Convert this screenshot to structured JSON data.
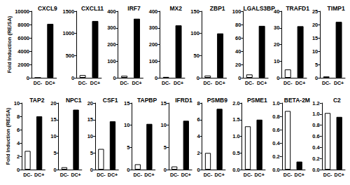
{
  "chart_data": [
    {
      "type": "bar",
      "title": "CXCL9",
      "ylabel": "Fold Induction (RE/SA)",
      "categories": [
        "DC-",
        "DC+"
      ],
      "values": [
        10,
        8100
      ],
      "colors": [
        "#ffffff",
        "#000000"
      ],
      "ylim": [
        0,
        10000
      ],
      "yticks": [
        0,
        2000,
        4000,
        6000,
        8000,
        10000
      ],
      "grid": false
    },
    {
      "type": "bar",
      "title": "CXCL11",
      "categories": [
        "DC-",
        "DC+"
      ],
      "values": [
        60,
        1280
      ],
      "colors": [
        "#ffffff",
        "#000000"
      ],
      "ylim": [
        0,
        1500
      ],
      "yticks": [
        0,
        500,
        1000,
        1500
      ],
      "grid": false
    },
    {
      "type": "bar",
      "title": "IRF7",
      "categories": [
        "DC-",
        "DC+"
      ],
      "values": [
        12,
        355
      ],
      "colors": [
        "#ffffff",
        "#000000"
      ],
      "ylim": [
        0,
        400
      ],
      "yticks": [
        0,
        100,
        200,
        300,
        400
      ],
      "grid": false
    },
    {
      "type": "bar",
      "title": "MX2",
      "categories": [
        "DC-",
        "DC+"
      ],
      "values": [
        5,
        315
      ],
      "colors": [
        "#ffffff",
        "#000000"
      ],
      "ylim": [
        0,
        400
      ],
      "yticks": [
        0,
        100,
        200,
        300,
        400
      ],
      "grid": false
    },
    {
      "type": "bar",
      "title": "ZBP1",
      "categories": [
        "DC-",
        "DC+"
      ],
      "values": [
        5,
        100
      ],
      "colors": [
        "#ffffff",
        "#000000"
      ],
      "ylim": [
        0,
        150
      ],
      "yticks": [
        0,
        50,
        100,
        150
      ],
      "grid": false
    },
    {
      "type": "bar",
      "title": "LGALS3BP",
      "categories": [
        "DC-",
        "DC+"
      ],
      "values": [
        5,
        78
      ],
      "colors": [
        "#ffffff",
        "#000000"
      ],
      "ylim": [
        0,
        100
      ],
      "yticks": [
        0,
        20,
        40,
        60,
        80,
        100
      ],
      "grid": false
    },
    {
      "type": "bar",
      "title": "TRAFD1",
      "categories": [
        "DC-",
        "DC+"
      ],
      "values": [
        5,
        31
      ],
      "colors": [
        "#ffffff",
        "#000000"
      ],
      "ylim": [
        0,
        40
      ],
      "yticks": [
        0,
        10,
        20,
        30,
        40
      ],
      "grid": false
    },
    {
      "type": "bar",
      "title": "TIMP1",
      "categories": [
        "DC-",
        "DC+"
      ],
      "values": [
        0.5,
        21
      ],
      "colors": [
        "#ffffff",
        "#000000"
      ],
      "ylim": [
        0,
        25
      ],
      "yticks": [
        0,
        5,
        10,
        15,
        20,
        25
      ],
      "grid": false
    },
    {
      "type": "bar",
      "title": "TAP2",
      "ylabel": "Fold Induction (RE/SA)",
      "categories": [
        "DC-",
        "DC+"
      ],
      "values": [
        2.8,
        8
      ],
      "colors": [
        "#ffffff",
        "#000000"
      ],
      "ylim": [
        0,
        10
      ],
      "yticks": [
        0,
        2,
        4,
        6,
        8,
        10
      ],
      "grid": false
    },
    {
      "type": "bar",
      "title": "NPC1",
      "categories": [
        "DC-",
        "DC+"
      ],
      "values": [
        0.7,
        18
      ],
      "colors": [
        "#ffffff",
        "#000000"
      ],
      "ylim": [
        0,
        20
      ],
      "yticks": [
        0,
        5,
        10,
        15,
        20
      ],
      "grid": false
    },
    {
      "type": "bar",
      "title": "CSF1",
      "categories": [
        "DC-",
        "DC+"
      ],
      "values": [
        6.2,
        14.5
      ],
      "colors": [
        "#ffffff",
        "#000000"
      ],
      "ylim": [
        0,
        20
      ],
      "yticks": [
        0,
        5,
        10,
        15,
        20
      ],
      "grid": false
    },
    {
      "type": "bar",
      "title": "TAPBP",
      "categories": [
        "DC-",
        "DC+"
      ],
      "values": [
        1.2,
        10.3
      ],
      "colors": [
        "#ffffff",
        "#000000"
      ],
      "ylim": [
        0,
        15
      ],
      "yticks": [
        0,
        5,
        10,
        15
      ],
      "grid": false
    },
    {
      "type": "bar",
      "title": "IFRD1",
      "categories": [
        "DC-",
        "DC+"
      ],
      "values": [
        0.7,
        11
      ],
      "colors": [
        "#ffffff",
        "#000000"
      ],
      "ylim": [
        0,
        15
      ],
      "yticks": [
        0,
        5,
        10,
        15
      ],
      "grid": false
    },
    {
      "type": "bar",
      "title": "PSMB9",
      "categories": [
        "DC-",
        "DC+"
      ],
      "values": [
        2,
        7.3
      ],
      "colors": [
        "#ffffff",
        "#000000"
      ],
      "ylim": [
        0,
        8
      ],
      "yticks": [
        0,
        2,
        4,
        6,
        8
      ],
      "grid": false
    },
    {
      "type": "bar",
      "title": "PSME1",
      "categories": [
        "DC-",
        "DC+"
      ],
      "values": [
        1.3,
        1.5
      ],
      "colors": [
        "#ffffff",
        "#000000"
      ],
      "ylim": [
        0,
        2
      ],
      "yticks": [
        {
          "value": 0,
          "label": "0.0"
        },
        0.5,
        {
          "value": 1,
          "label": "1.0"
        },
        1.5,
        {
          "value": 2,
          "label": "2.0"
        }
      ],
      "grid": false
    },
    {
      "type": "bar",
      "title": "BETA-2M",
      "categories": [
        "DC-",
        "DC+"
      ],
      "values": [
        0.88,
        0.12
      ],
      "colors": [
        "#ffffff",
        "#000000"
      ],
      "ylim": [
        0,
        1
      ],
      "yticks": [
        {
          "value": 0,
          "label": "0.0"
        },
        0.2,
        0.4,
        0.6,
        0.8,
        {
          "value": 1,
          "label": "1.0"
        }
      ],
      "grid": false
    },
    {
      "type": "bar",
      "title": "C2",
      "categories": [
        "DC-",
        "DC+"
      ],
      "values": [
        1.02,
        0.95
      ],
      "colors": [
        "#ffffff",
        "#000000"
      ],
      "ylim": [
        0,
        1.2
      ],
      "yticks": [
        {
          "value": 0,
          "label": "0.0"
        },
        0.2,
        0.4,
        0.6,
        0.8,
        {
          "value": 1,
          "label": "1.0"
        },
        1.2
      ],
      "grid": false
    }
  ]
}
